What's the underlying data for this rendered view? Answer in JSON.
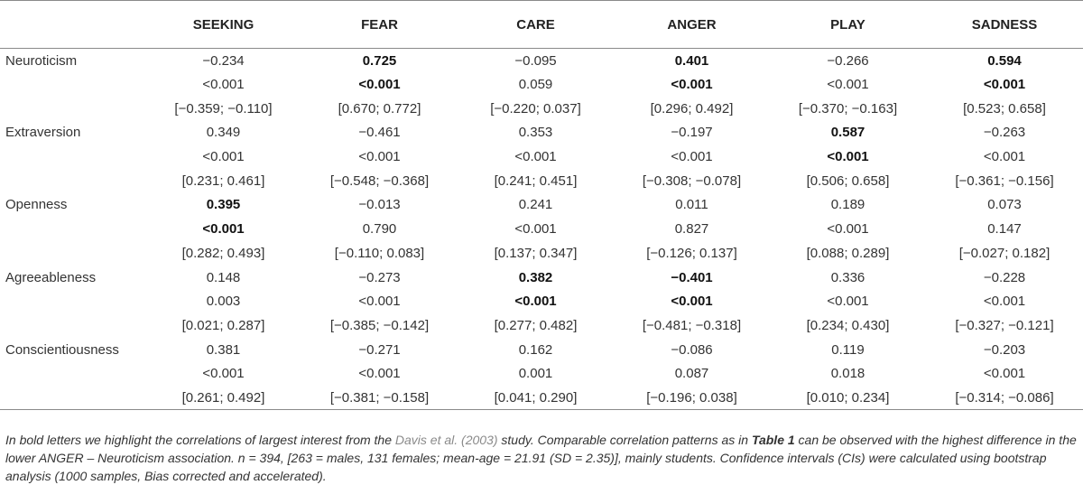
{
  "table": {
    "corner": "",
    "columns": [
      "SEEKING",
      "FEAR",
      "CARE",
      "ANGER",
      "PLAY",
      "SADNESS"
    ],
    "rows": [
      {
        "trait": "Neuroticism",
        "r": [
          "−0.234",
          "0.725",
          "−0.095",
          "0.401",
          "−0.266",
          "0.594"
        ],
        "p": [
          "<0.001",
          "<0.001",
          "0.059",
          "<0.001",
          "<0.001",
          "<0.001"
        ],
        "ci": [
          "[−0.359; −0.110]",
          "[0.670; 0.772]",
          "[−0.220; 0.037]",
          "[0.296; 0.492]",
          "[−0.370; −0.163]",
          "[0.523; 0.658]"
        ],
        "bold": [
          false,
          true,
          false,
          true,
          false,
          true
        ]
      },
      {
        "trait": "Extraversion",
        "r": [
          "0.349",
          "−0.461",
          "0.353",
          "−0.197",
          "0.587",
          "−0.263"
        ],
        "p": [
          "<0.001",
          "<0.001",
          "<0.001",
          "<0.001",
          "<0.001",
          "<0.001"
        ],
        "ci": [
          "[0.231; 0.461]",
          "[−0.548; −0.368]",
          "[0.241; 0.451]",
          "[−0.308; −0.078]",
          "[0.506; 0.658]",
          "[−0.361; −0.156]"
        ],
        "bold": [
          false,
          false,
          false,
          false,
          true,
          false
        ]
      },
      {
        "trait": "Openness",
        "r": [
          "0.395",
          "−0.013",
          "0.241",
          "0.011",
          "0.189",
          "0.073"
        ],
        "p": [
          "<0.001",
          "0.790",
          "<0.001",
          "0.827",
          "<0.001",
          "0.147"
        ],
        "ci": [
          "[0.282; 0.493]",
          "[−0.110; 0.083]",
          "[0.137; 0.347]",
          "[−0.126; 0.137]",
          "[0.088; 0.289]",
          "[−0.027; 0.182]"
        ],
        "bold": [
          true,
          false,
          false,
          false,
          false,
          false
        ]
      },
      {
        "trait": "Agreeableness",
        "r": [
          "0.148",
          "−0.273",
          "0.382",
          "−0.401",
          "0.336",
          "−0.228"
        ],
        "p": [
          "0.003",
          "<0.001",
          "<0.001",
          "<0.001",
          "<0.001",
          "<0.001"
        ],
        "ci": [
          "[0.021; 0.287]",
          "[−0.385; −0.142]",
          "[0.277; 0.482]",
          "[−0.481; −0.318]",
          "[0.234; 0.430]",
          "[−0.327; −0.121]"
        ],
        "bold": [
          false,
          false,
          true,
          true,
          false,
          false
        ]
      },
      {
        "trait": "Conscientiousness",
        "r": [
          "0.381",
          "−0.271",
          "0.162",
          "−0.086",
          "0.119",
          "−0.203"
        ],
        "p": [
          "<0.001",
          "<0.001",
          "0.001",
          "0.087",
          "0.018",
          "<0.001"
        ],
        "ci": [
          "[0.261; 0.492]",
          "[−0.381; −0.158]",
          "[0.041; 0.290]",
          "[−0.196; 0.038]",
          "[0.010; 0.234]",
          "[−0.314; −0.086]"
        ],
        "bold": [
          false,
          false,
          false,
          false,
          false,
          false
        ]
      }
    ]
  },
  "footnote": {
    "part1": "In bold letters we highlight the correlations of largest interest from the ",
    "ref": "Davis et al. (2003)",
    "part2": " study. Comparable correlation patterns as in ",
    "table_ref": "Table 1",
    "part3": " can be observed with the highest difference in the lower ANGER – Neuroticism association. n = 394, [263 = males, 131 females; mean-age = 21.91 (SD = 2.35)], mainly students. Confidence intervals (CIs) were calculated using bootstrap analysis (1000 samples, Bias corrected and accelerated)."
  }
}
